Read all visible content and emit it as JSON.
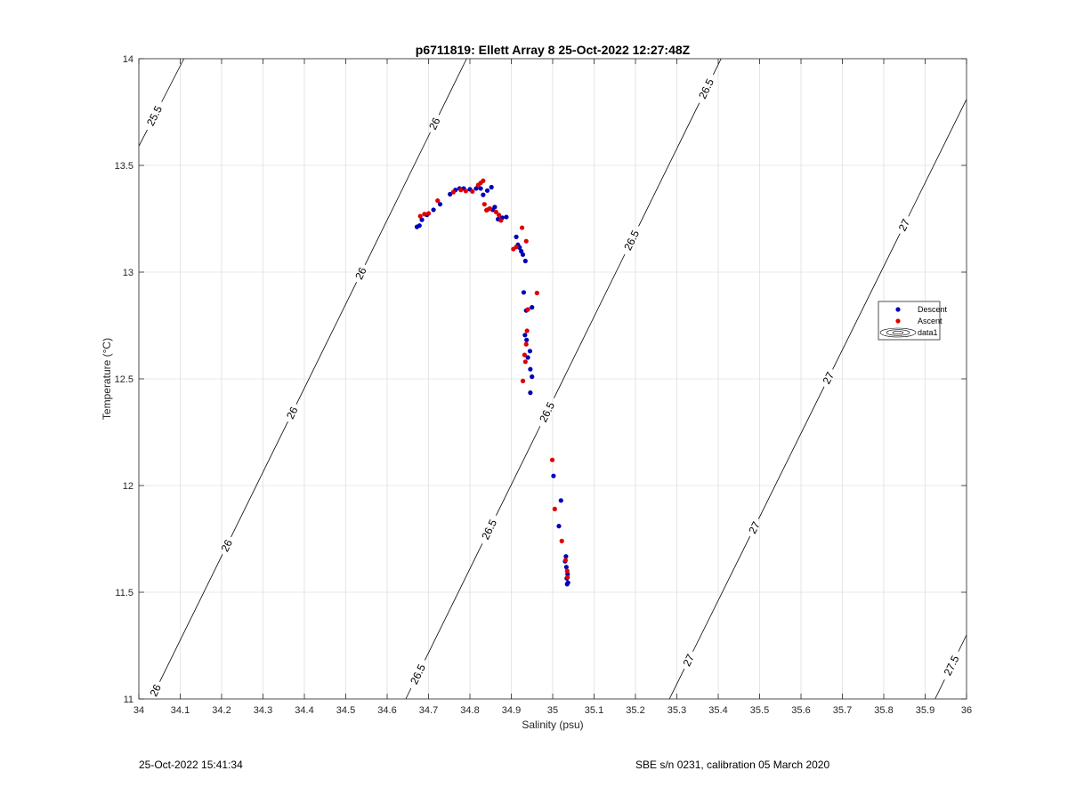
{
  "footer": {
    "left": "25-Oct-2022 15:41:34",
    "right": "SBE s/n 0231, calibration 05 March 2020"
  },
  "chart_data": {
    "type": "scatter",
    "title": "p6711819: Ellett Array 8 25-Oct-2022 12:27:48Z",
    "xlabel": "Salinity (psu)",
    "ylabel": "Temperature (°C)",
    "xlim": [
      34,
      36
    ],
    "ylim": [
      11,
      14
    ],
    "xticks": [
      "34",
      "34.1",
      "34.2",
      "34.3",
      "34.4",
      "34.5",
      "34.6",
      "34.7",
      "34.8",
      "34.9",
      "35",
      "35.1",
      "35.2",
      "35.3",
      "35.4",
      "35.5",
      "35.6",
      "35.7",
      "35.8",
      "35.9",
      "36"
    ],
    "yticks": [
      "11",
      "11.5",
      "12",
      "12.5",
      "13",
      "13.5",
      "14"
    ],
    "grid": true,
    "legend_position": "right",
    "colors": {
      "descent": "#0000b8",
      "ascent": "#e00000",
      "contour": "#000000",
      "grid": "#e0e0e0"
    },
    "series": [
      {
        "name": "Descent",
        "points": [
          [
            34.672,
            13.212
          ],
          [
            34.678,
            13.218
          ],
          [
            34.684,
            13.245
          ],
          [
            34.696,
            13.268
          ],
          [
            34.712,
            13.292
          ],
          [
            34.728,
            13.318
          ],
          [
            34.752,
            13.365
          ],
          [
            34.765,
            13.385
          ],
          [
            34.775,
            13.392
          ],
          [
            34.785,
            13.392
          ],
          [
            34.8,
            13.388
          ],
          [
            34.815,
            13.392
          ],
          [
            34.826,
            13.392
          ],
          [
            34.832,
            13.362
          ],
          [
            34.842,
            13.382
          ],
          [
            34.852,
            13.398
          ],
          [
            34.842,
            13.292
          ],
          [
            34.855,
            13.292
          ],
          [
            34.86,
            13.305
          ],
          [
            34.868,
            13.248
          ],
          [
            34.878,
            13.255
          ],
          [
            34.888,
            13.258
          ],
          [
            34.912,
            13.165
          ],
          [
            34.916,
            13.128
          ],
          [
            34.92,
            13.115
          ],
          [
            34.924,
            13.098
          ],
          [
            34.928,
            13.082
          ],
          [
            34.934,
            13.052
          ],
          [
            34.93,
            12.905
          ],
          [
            34.936,
            12.82
          ],
          [
            34.95,
            12.835
          ],
          [
            34.933,
            12.705
          ],
          [
            34.937,
            12.682
          ],
          [
            34.945,
            12.63
          ],
          [
            34.94,
            12.6
          ],
          [
            34.946,
            12.545
          ],
          [
            34.95,
            12.51
          ],
          [
            34.946,
            12.435
          ],
          [
            35.002,
            12.045
          ],
          [
            35.02,
            11.93
          ],
          [
            35.015,
            11.81
          ],
          [
            35.032,
            11.668
          ],
          [
            35.03,
            11.645
          ],
          [
            35.033,
            11.618
          ],
          [
            35.036,
            11.585
          ],
          [
            35.034,
            11.565
          ],
          [
            35.037,
            11.545
          ],
          [
            35.035,
            11.538
          ]
        ]
      },
      {
        "name": "Ascent",
        "points": [
          [
            34.68,
            13.262
          ],
          [
            34.69,
            13.272
          ],
          [
            34.7,
            13.275
          ],
          [
            34.722,
            13.335
          ],
          [
            34.76,
            13.375
          ],
          [
            34.778,
            13.385
          ],
          [
            34.79,
            13.38
          ],
          [
            34.806,
            13.378
          ],
          [
            34.82,
            13.408
          ],
          [
            34.826,
            13.418
          ],
          [
            34.832,
            13.428
          ],
          [
            34.835,
            13.318
          ],
          [
            34.84,
            13.29
          ],
          [
            34.848,
            13.298
          ],
          [
            34.863,
            13.282
          ],
          [
            34.87,
            13.268
          ],
          [
            34.875,
            13.242
          ],
          [
            34.905,
            13.108
          ],
          [
            34.912,
            13.118
          ],
          [
            34.926,
            13.208
          ],
          [
            34.936,
            13.145
          ],
          [
            34.962,
            12.902
          ],
          [
            34.94,
            12.825
          ],
          [
            34.938,
            12.725
          ],
          [
            34.936,
            12.662
          ],
          [
            34.932,
            12.612
          ],
          [
            34.934,
            12.58
          ],
          [
            34.928,
            12.49
          ],
          [
            34.999,
            12.12
          ],
          [
            35.005,
            11.89
          ],
          [
            35.022,
            11.74
          ],
          [
            35.031,
            11.65
          ],
          [
            35.035,
            11.6
          ],
          [
            35.036,
            11.57
          ]
        ]
      }
    ],
    "contours": [
      {
        "label": "25.5",
        "points": [
          [
            34.0,
            13.59
          ],
          [
            34.109,
            14.0
          ]
        ],
        "label_at": [
          34.04,
          13.73
        ]
      },
      {
        "label": "26",
        "points": [
          [
            34.03,
            11.0
          ],
          [
            34.792,
            14.0
          ]
        ],
        "label_at": [
          [
            34.03,
            11.05
          ],
          [
            34.2,
            11.73
          ],
          [
            34.36,
            12.35
          ],
          [
            34.53,
            13.0
          ],
          [
            34.71,
            13.7
          ]
        ]
      },
      {
        "label": "26.5",
        "points": [
          [
            34.645,
            11.0
          ],
          [
            35.407,
            14.0
          ]
        ],
        "label_at": [
          [
            34.67,
            11.12
          ],
          [
            34.84,
            11.8
          ],
          [
            34.98,
            12.35
          ],
          [
            35.19,
            13.15
          ],
          [
            35.37,
            13.86
          ]
        ]
      },
      {
        "label": "27",
        "points": [
          [
            35.282,
            11.0
          ],
          [
            36.0,
            13.81
          ]
        ],
        "label_at": [
          [
            35.33,
            11.18
          ],
          [
            35.49,
            11.8
          ],
          [
            35.67,
            12.5
          ],
          [
            35.85,
            13.22
          ]
        ]
      },
      {
        "label": "27.5",
        "points": [
          [
            35.924,
            11.0
          ],
          [
            36.0,
            11.3
          ]
        ],
        "label_at": [
          35.96,
          11.16
        ]
      }
    ],
    "legend": [
      {
        "label": "Descent",
        "marker": "dot",
        "color": "#0000b8"
      },
      {
        "label": "Ascent",
        "marker": "dot",
        "color": "#e00000"
      },
      {
        "label": "data1",
        "marker": "contour",
        "color": "#000000"
      }
    ]
  }
}
